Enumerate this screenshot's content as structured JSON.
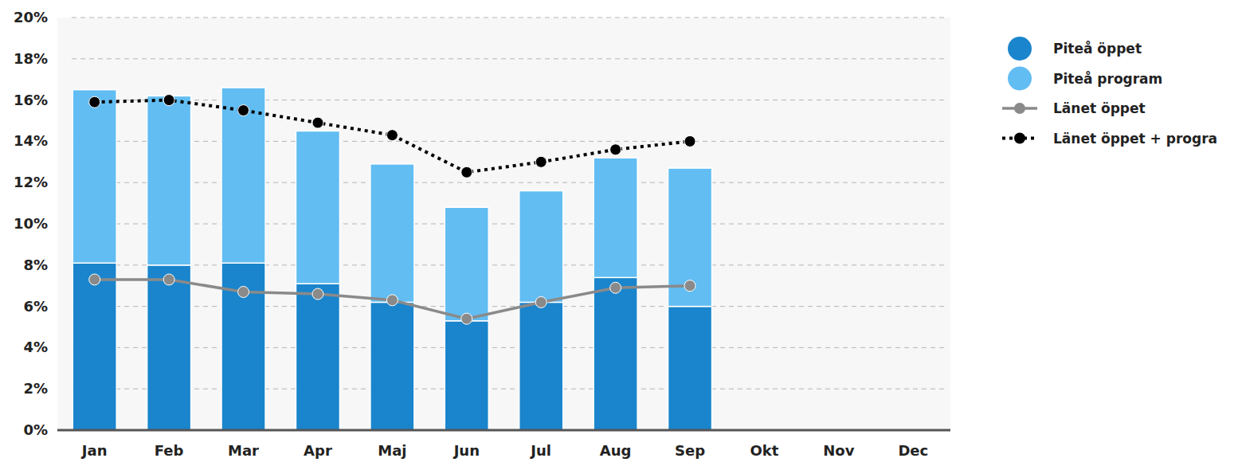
{
  "chart_data": {
    "type": "bar",
    "stacked": true,
    "grid": true,
    "legend": "right",
    "categories": [
      "Jan",
      "Feb",
      "Mar",
      "Apr",
      "Maj",
      "Jun",
      "Jul",
      "Aug",
      "Sep",
      "Okt",
      "Nov",
      "Dec"
    ],
    "ylim": [
      0,
      20
    ],
    "yticks": [
      {
        "value": 0,
        "label": "0%"
      },
      {
        "value": 2,
        "label": "2%"
      },
      {
        "value": 4,
        "label": "4%"
      },
      {
        "value": 6,
        "label": "6%"
      },
      {
        "value": 8,
        "label": "8%"
      },
      {
        "value": 10,
        "label": "10%"
      },
      {
        "value": 12,
        "label": "12%"
      },
      {
        "value": 14,
        "label": "14%"
      },
      {
        "value": 16,
        "label": "16%"
      },
      {
        "value": 18,
        "label": "18%"
      },
      {
        "value": 20,
        "label": "20%"
      }
    ],
    "series": [
      {
        "name": "Piteå öppet",
        "type": "bar",
        "color": "#1a85cc",
        "values": [
          8.1,
          8.0,
          8.1,
          7.1,
          6.2,
          5.3,
          6.2,
          7.4,
          6.0,
          null,
          null,
          null
        ]
      },
      {
        "name": "Piteå program",
        "type": "bar",
        "color": "#62bdf2",
        "values": [
          8.4,
          8.2,
          8.5,
          7.4,
          6.7,
          5.5,
          5.4,
          5.8,
          6.7,
          null,
          null,
          null
        ]
      },
      {
        "name": "Länet öppet",
        "type": "line",
        "color": "#8a8a8a",
        "marker": "circle",
        "line_style": "solid",
        "values": [
          7.3,
          7.3,
          6.7,
          6.6,
          6.3,
          5.4,
          6.2,
          6.9,
          7.0,
          null,
          null,
          null
        ]
      },
      {
        "name": "Länet öppet + progra",
        "type": "line",
        "color": "#000000",
        "marker": "circle",
        "line_style": "dotted",
        "values": [
          15.9,
          16.0,
          15.5,
          14.9,
          14.3,
          12.5,
          13.0,
          13.6,
          14.0,
          null,
          null,
          null
        ]
      }
    ]
  }
}
